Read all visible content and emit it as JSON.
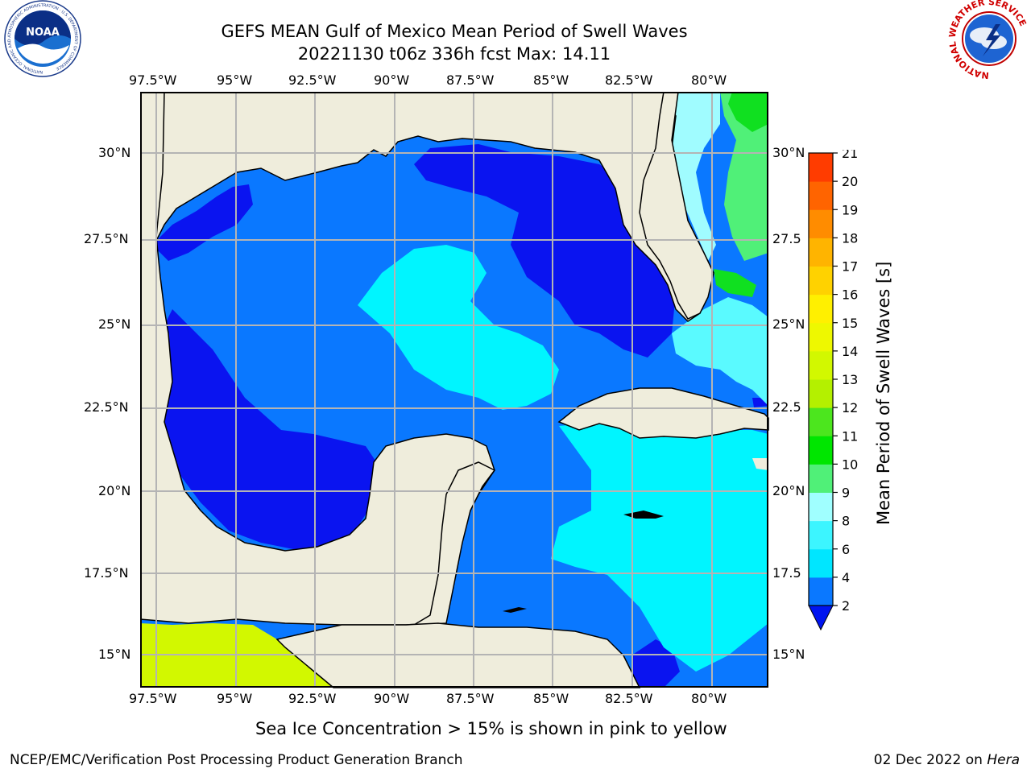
{
  "header": {
    "title_line1": "GEFS MEAN Gulf of Mexico Mean Period of Swell Waves",
    "title_line2": "20221130 t06z 336h fcst   Max: 14.11"
  },
  "logos": {
    "noaa_text": "NOAA",
    "noaa_ring_text": "NATIONAL OCEANIC AND ATMOSPHERIC ADMINISTRATION · U.S. DEPARTMENT OF COMMERCE",
    "nws_ring_text": "NATIONAL WEATHER SERVICE"
  },
  "map": {
    "lon_labels": [
      "97.5°W",
      "95°W",
      "92.5°W",
      "90°W",
      "87.5°W",
      "85°W",
      "82.5°W",
      "80°W"
    ],
    "lat_labels_left": [
      "30°N",
      "27.5°N",
      "25°N",
      "22.5°N",
      "20°N",
      "17.5°N",
      "15°N"
    ],
    "lat_labels_right": [
      "30°N",
      "27.5",
      "25°N",
      "22.5",
      "20°N",
      "17.5",
      "15°N"
    ],
    "colors": {
      "land": "#efeddc",
      "deep_blue": "#0a14f0",
      "mid_blue": "#0a78ff",
      "cyan": "#00f5ff",
      "light_cyan": "#5afaff",
      "pale_cyan": "#a0fcff",
      "green": "#50f078",
      "bright_green": "#10e020",
      "yellow_green": "#d2f800"
    }
  },
  "colorbar": {
    "label": "Mean Period of Swell Waves [s]",
    "ticks": [
      "2",
      "4",
      "6",
      "8",
      "9",
      "10",
      "11",
      "12",
      "13",
      "14",
      "15",
      "16",
      "17",
      "18",
      "19",
      "20",
      "21"
    ],
    "under_color": "#0014f0",
    "band_colors": [
      "#0a78ff",
      "#00e6ff",
      "#3cf5ff",
      "#a0ffff",
      "#50f078",
      "#00e600",
      "#4ce61e",
      "#b4f000",
      "#d2f800",
      "#eef800",
      "#fff000",
      "#ffd200",
      "#ffb400",
      "#ff8c00",
      "#ff6400",
      "#ff3c00",
      "#ff0000"
    ]
  },
  "note": "Sea Ice Concentration > 15% is shown in pink to yellow",
  "footer": {
    "left": "NCEP/EMC/Verification Post Processing Product Generation Branch",
    "date": "02 Dec 2022 on ",
    "machine": "Hera"
  }
}
